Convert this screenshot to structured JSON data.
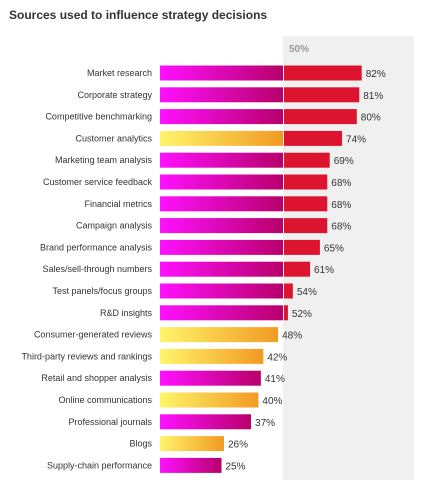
{
  "chart_data": {
    "type": "bar",
    "orientation": "horizontal",
    "title": "Sources used to influence strategy decisions",
    "reference_line": {
      "value": 50,
      "label": "50%"
    },
    "xlim": [
      0,
      100
    ],
    "categories": [
      "Market research",
      "Corporate strategy",
      "Competitive benchmarking",
      "Customer analytics",
      "Marketing team analysis",
      "Customer service feedback",
      "Financial metrics",
      "Campaign analysis",
      "Brand performance analysis",
      "Sales/sell-through numbers",
      "Test panels/focus groups",
      "R&D insights",
      "Consumer-generated reviews",
      "Third-party reviews and rankings",
      "Retail and shopper analysis",
      "Online communications",
      "Professional journals",
      "Blogs",
      "Supply-chain performance"
    ],
    "values": [
      82,
      81,
      80,
      74,
      69,
      68,
      68,
      68,
      65,
      61,
      54,
      52,
      48,
      42,
      41,
      40,
      37,
      26,
      25
    ],
    "value_labels": [
      "82%",
      "81%",
      "80%",
      "74%",
      "69%",
      "68%",
      "68%",
      "68%",
      "65%",
      "61%",
      "54%",
      "52%",
      "48%",
      "42%",
      "41%",
      "40%",
      "37%",
      "26%",
      "25%"
    ],
    "color_group": [
      "magenta",
      "magenta",
      "magenta",
      "orange",
      "magenta",
      "magenta",
      "magenta",
      "magenta",
      "magenta",
      "magenta",
      "magenta",
      "magenta",
      "orange",
      "orange",
      "magenta",
      "orange",
      "magenta",
      "orange",
      "magenta"
    ],
    "colors": {
      "magenta_start": "#ff10ff",
      "magenta_end": "#b8006a",
      "orange_start": "#fff56a",
      "orange_end": "#f29a22",
      "above_reference": "#dc1430",
      "reference_panel": "#f0f0f0"
    },
    "grid": false,
    "legend": "none"
  }
}
